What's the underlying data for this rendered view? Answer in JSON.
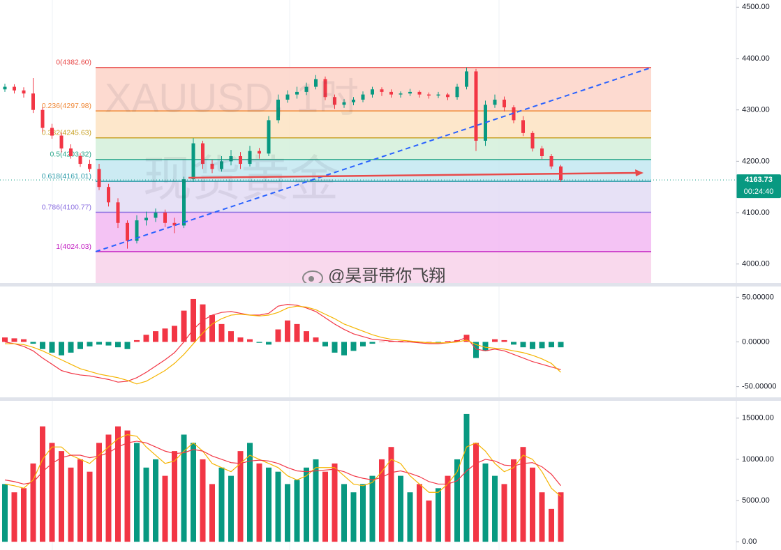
{
  "chart_data": [
    {
      "type": "candlestick",
      "watermark_symbol": "XAUUSD, 1时",
      "watermark_name": "现货黄金",
      "credit": "@昊哥带你飞翔",
      "up_color": "#089981",
      "down_color": "#f23645",
      "open": [
        4340,
        4345,
        4338,
        4332,
        4300,
        4265,
        4250,
        4225,
        4210,
        4195,
        4185,
        4150,
        4120,
        4080,
        4045,
        4085,
        4090,
        4100,
        4080,
        4075,
        4165,
        4235,
        4195,
        4185,
        4200,
        4210,
        4195,
        4220,
        4215,
        4280,
        4320,
        4330,
        4335,
        4345,
        4360,
        4325,
        4310,
        4315,
        4320,
        4330,
        4340,
        4335,
        4330,
        4332,
        4335,
        4330,
        4328,
        4330,
        4325,
        4345,
        4375,
        4240,
        4310,
        4320,
        4305,
        4280,
        4255,
        4225,
        4210,
        4190
      ],
      "high": [
        4351,
        4350,
        4344,
        4362,
        4305,
        4273,
        4256,
        4233,
        4216,
        4203,
        4195,
        4156,
        4128,
        4085,
        4095,
        4102,
        4108,
        4106,
        4090,
        4170,
        4245,
        4240,
        4203,
        4210,
        4222,
        4218,
        4230,
        4226,
        4288,
        4330,
        4338,
        4345,
        4353,
        4368,
        4365,
        4330,
        4321,
        4325,
        4336,
        4345,
        4344,
        4340,
        4336,
        4341,
        4338,
        4334,
        4335,
        4333,
        4351,
        4382.6,
        4380,
        4318,
        4330,
        4326,
        4309,
        4288,
        4259,
        4230,
        4214,
        4193
      ],
      "low": [
        4335,
        4332,
        4324,
        4294,
        4257,
        4244,
        4217,
        4205,
        4189,
        4179,
        4144,
        4112,
        4070,
        4030,
        4040,
        4075,
        4082,
        4072,
        4060,
        4070,
        4160,
        4185,
        4177,
        4180,
        4192,
        4185,
        4190,
        4205,
        4210,
        4274,
        4314,
        4322,
        4329,
        4340,
        4319,
        4302,
        4304,
        4309,
        4315,
        4324,
        4327,
        4324,
        4324,
        4327,
        4324,
        4322,
        4323,
        4319,
        4320,
        4340,
        4220,
        4230,
        4304,
        4297,
        4274,
        4249,
        4219,
        4204,
        4185,
        4160
      ],
      "close": [
        4345,
        4338,
        4332,
        4300,
        4265,
        4250,
        4225,
        4210,
        4195,
        4185,
        4150,
        4120,
        4080,
        4045,
        4085,
        4090,
        4100,
        4080,
        4075,
        4165,
        4235,
        4195,
        4185,
        4200,
        4210,
        4195,
        4220,
        4215,
        4280,
        4320,
        4330,
        4335,
        4345,
        4360,
        4325,
        4310,
        4315,
        4320,
        4330,
        4340,
        4335,
        4330,
        4332,
        4335,
        4330,
        4328,
        4330,
        4325,
        4345,
        4375,
        4240,
        4310,
        4320,
        4305,
        4280,
        4255,
        4225,
        4210,
        4190,
        4163.73
      ],
      "ylim": [
        3963,
        4514
      ],
      "yticks": [
        {
          "value": 4000,
          "label": "4000.00"
        },
        {
          "value": 4100,
          "label": "4100.00"
        },
        {
          "value": 4200,
          "label": "4200.00"
        },
        {
          "value": 4300,
          "label": "4300.00"
        },
        {
          "value": 4400,
          "label": "4400.00"
        },
        {
          "value": 4500,
          "label": "4500.00"
        }
      ],
      "last_price": 4163.73,
      "countdown": "00:24:40",
      "fibonacci": [
        {
          "label": "0(4382.60)",
          "price": 4382.6,
          "line_color": "#e84a4a",
          "fill": "#fdd3c8"
        },
        {
          "label": "0.236(4297.98)",
          "price": 4297.98,
          "line_color": "#f08a3a",
          "fill": "#fde3c2"
        },
        {
          "label": "0.382(4245.63)",
          "price": 4245.63,
          "line_color": "#c9a227",
          "fill": "#d3f0db"
        },
        {
          "label": "0.5(4203.32)",
          "price": 4203.32,
          "line_color": "#2aa68a",
          "fill": "#c3e8f1"
        },
        {
          "label": "0.618(4161.01)",
          "price": 4161.01,
          "line_color": "#2a9aa8",
          "fill": "#e3dcf5"
        },
        {
          "label": "0.786(4100.77)",
          "price": 4100.77,
          "line_color": "#8a6ee0",
          "fill": "#f2b9f2"
        },
        {
          "label": "1(4024.03)",
          "price": 4024.03,
          "line_color": "#c21fc2",
          "fill": "#f8d2ea"
        }
      ]
    },
    {
      "type": "macd",
      "up_color": "#f23645",
      "down_color": "#089981",
      "histogram": [
        5,
        4,
        3,
        -2,
        -8,
        -12,
        -15,
        -12,
        -8,
        -5,
        -3,
        -4,
        -6,
        -8,
        2,
        8,
        12,
        15,
        18,
        35,
        48,
        42,
        30,
        20,
        12,
        5,
        3,
        -1,
        -3,
        14,
        24,
        20,
        12,
        5,
        -5,
        -12,
        -15,
        -10,
        -5,
        -2,
        0,
        1,
        1,
        1,
        0,
        0,
        -1,
        1,
        2,
        8,
        -18,
        -10,
        3,
        2,
        -3,
        -6,
        -8,
        -7,
        -6,
        -6
      ],
      "lines": [
        {
          "color": "#f23645",
          "values": [
            0,
            -2,
            -5,
            -10,
            -18,
            -25,
            -32,
            -35,
            -37,
            -38,
            -40,
            -42,
            -45,
            -44,
            -40,
            -34,
            -27,
            -20,
            -12,
            0,
            14,
            24,
            30,
            33,
            34,
            32,
            30,
            30,
            32,
            40,
            42,
            41,
            38,
            34,
            27,
            20,
            14,
            9,
            6,
            3,
            2,
            1,
            0,
            0,
            -1,
            -2,
            -2,
            -1,
            1,
            5,
            -8,
            -10,
            -8,
            -10,
            -14,
            -18,
            -22,
            -25,
            -28,
            -31
          ]
        },
        {
          "color": "#f5b400",
          "values": [
            -2,
            -2,
            -3,
            -6,
            -10,
            -15,
            -20,
            -25,
            -30,
            -33,
            -36,
            -38,
            -40,
            -43,
            -47,
            -44,
            -38,
            -32,
            -24,
            -14,
            -2,
            10,
            20,
            26,
            30,
            31,
            30,
            29,
            30,
            33,
            38,
            40,
            39,
            36,
            31,
            26,
            20,
            16,
            12,
            8,
            5,
            3,
            2,
            1,
            0,
            -1,
            -1,
            -1,
            0,
            2,
            -3,
            -6,
            -7,
            -8,
            -10,
            -12,
            -15,
            -19,
            -24,
            -34
          ]
        }
      ],
      "ylim": [
        -62,
        62
      ],
      "yticks": [
        {
          "value": 50,
          "label": "50.00000"
        },
        {
          "value": 0,
          "label": "0.00000"
        },
        {
          "value": -50,
          "label": "-50.00000"
        }
      ]
    },
    {
      "type": "bar",
      "values": [
        7000,
        6000,
        6500,
        9500,
        14000,
        12000,
        11000,
        9000,
        10000,
        8500,
        12000,
        13000,
        14000,
        13500,
        12000,
        9000,
        10000,
        8000,
        11000,
        13000,
        12000,
        10000,
        7000,
        9000,
        8000,
        11000,
        12000,
        9500,
        9000,
        8500,
        7000,
        7500,
        9000,
        10000,
        8500,
        9500,
        7000,
        6000,
        7000,
        8000,
        10000,
        11500,
        8000,
        6000,
        7000,
        5000,
        6500,
        8000,
        10000,
        15500,
        12000,
        9500,
        8000,
        7000,
        10000,
        11500,
        9000,
        6000,
        4000,
        6000
      ],
      "lines": [
        {
          "color": "#f5b400",
          "values": [
            7000,
            6800,
            6500,
            7500,
            10000,
            11500,
            11500,
            10500,
            10000,
            9500,
            10500,
            11500,
            12500,
            13000,
            12800,
            11500,
            10500,
            9500,
            9800,
            11000,
            12000,
            11000,
            9500,
            9000,
            8500,
            9500,
            10500,
            10000,
            9500,
            9000,
            8000,
            7500,
            8000,
            9000,
            9000,
            9000,
            8000,
            7000,
            6800,
            7200,
            8500,
            10000,
            9500,
            8000,
            7000,
            6000,
            6000,
            7000,
            8500,
            11500,
            12000,
            11000,
            9500,
            8500,
            9000,
            10500,
            10000,
            8500,
            6500,
            5500
          ]
        },
        {
          "color": "#f23645",
          "values": [
            7500,
            7300,
            7000,
            7200,
            8500,
            9500,
            10200,
            10500,
            10500,
            10200,
            10400,
            10800,
            11500,
            12000,
            12200,
            12000,
            11500,
            11000,
            10700,
            10800,
            11200,
            11000,
            10400,
            10000,
            9600,
            9500,
            9800,
            9900,
            9800,
            9500,
            9000,
            8600,
            8500,
            8600,
            8700,
            8800,
            8500,
            8000,
            7700,
            7500,
            7800,
            8400,
            8600,
            8300,
            7900,
            7300,
            7000,
            7000,
            7400,
            8600,
            9500,
            10000,
            9800,
            9300,
            9200,
            9500,
            9600,
            9100,
            8200,
            6800
          ]
        }
      ],
      "ylim": [
        -1000,
        17100
      ],
      "yticks": [
        {
          "value": 0,
          "label": "0.00"
        },
        {
          "value": 5000,
          "label": "5000.00"
        },
        {
          "value": 10000,
          "label": "10000.00"
        },
        {
          "value": 15000,
          "label": "15000.00"
        }
      ]
    }
  ]
}
